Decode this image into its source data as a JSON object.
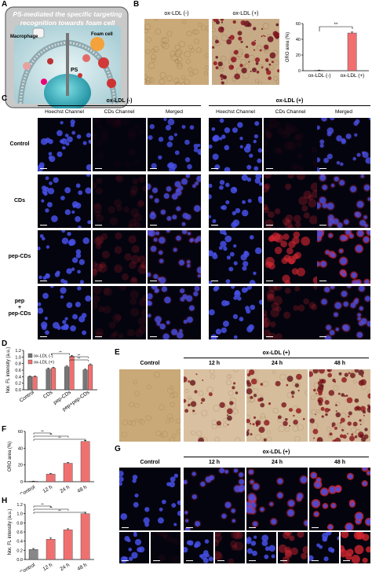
{
  "panels": {
    "A": "A",
    "B": "B",
    "C": "C",
    "D": "D",
    "E": "E",
    "F": "F",
    "G": "G",
    "H": "H"
  },
  "panelA": {
    "title_line1": "PS-mediated the specific targeting",
    "title_line2": "recognition towards foam cell",
    "macrophage": "Macrophage",
    "foam_cell": "Foam cell",
    "ps": "PS"
  },
  "panelB": {
    "label_minus": "ox-LDL (-)",
    "label_plus": "ox-LDL (+)"
  },
  "panelC": {
    "group_minus": "ox-LDL (-)",
    "group_plus": "ox-LDL (+)",
    "channels": [
      "Hoechst Channel",
      "CDs Channel",
      "Merged"
    ],
    "rows": [
      "Control",
      "CDs",
      "pep-CDs",
      "pep\n+\npep-CDs"
    ]
  },
  "panelE": {
    "group": "ox-LDL (+)",
    "columns": [
      "Control",
      "12 h",
      "24 h",
      "48 h"
    ]
  },
  "panelG": {
    "group": "ox-LDL (+)",
    "columns": [
      "Control",
      "12 h",
      "24 h",
      "48 h"
    ]
  },
  "chart_data": [
    {
      "id": "B",
      "type": "bar",
      "categories": [
        "ox-LDL (-)",
        "ox-LDL (+)"
      ],
      "values": [
        0.5,
        48
      ],
      "errors": [
        0.3,
        1.2
      ],
      "ylabel": "ORO area (%)",
      "ylim": [
        0,
        60
      ],
      "yticks": [
        0,
        20,
        40,
        60
      ],
      "significance": [
        {
          "pair": [
            0,
            1
          ],
          "label": "**"
        }
      ],
      "colors": [
        "#888888",
        "#f07070"
      ]
    },
    {
      "id": "D",
      "type": "bar",
      "categories": [
        "Control",
        "CDs",
        "pep-CDs",
        "pep+pep-CDs"
      ],
      "series": [
        {
          "name": "ox-LDL (-)",
          "values": [
            0.4,
            0.63,
            0.7,
            0.61
          ],
          "errors": [
            0.02,
            0.03,
            0.03,
            0.02
          ],
          "color": "#777777"
        },
        {
          "name": "ox-LDL (+)",
          "values": [
            0.4,
            0.66,
            1.02,
            0.76
          ],
          "errors": [
            0.02,
            0.03,
            0.03,
            0.03
          ],
          "color": "#f07070"
        }
      ],
      "ylabel": "Nor. FL intensity (a.u.)",
      "ylim": [
        0,
        1.2
      ],
      "yticks": [
        0,
        0.2,
        0.4,
        0.6,
        0.8,
        1.0,
        1.2
      ],
      "legend": "top-left",
      "significance_label": "**"
    },
    {
      "id": "F",
      "type": "bar",
      "categories": [
        "Control",
        "12 h",
        "24 h",
        "48 h"
      ],
      "values": [
        0.5,
        9,
        22,
        48
      ],
      "errors": [
        0.2,
        0.8,
        1.0,
        1.2
      ],
      "ylabel": "ORO area (%)",
      "ylim": [
        0,
        60
      ],
      "yticks": [
        0,
        20,
        40,
        60
      ],
      "colors": [
        "#888888",
        "#f07070",
        "#f07070",
        "#f07070"
      ],
      "significance_label": "**"
    },
    {
      "id": "H",
      "type": "bar",
      "categories": [
        "Control",
        "12 h",
        "24 h",
        "48 h"
      ],
      "values": [
        0.22,
        0.44,
        0.65,
        1.0
      ],
      "errors": [
        0.02,
        0.03,
        0.02,
        0.03
      ],
      "ylabel": "Nor. FL intensity (a.u.)",
      "ylim": [
        0,
        1.2
      ],
      "yticks": [
        0,
        0.2,
        0.4,
        0.6,
        0.8,
        1.0,
        1.2
      ],
      "colors": [
        "#888888",
        "#f07070",
        "#f07070",
        "#f07070"
      ],
      "significance_label": "**"
    }
  ]
}
